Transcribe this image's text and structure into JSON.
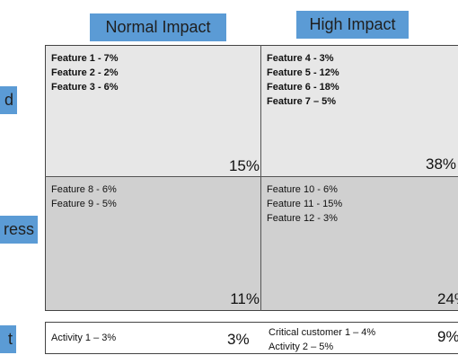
{
  "headers": {
    "normal": "Normal Impact",
    "high": "High Impact"
  },
  "rows": {
    "top": "d",
    "middle": "ress",
    "bottom": "t"
  },
  "quadrants": {
    "top_left": {
      "items": [
        "Feature 1 - 7%",
        "Feature 2 - 2%",
        "Feature 3 - 6%"
      ],
      "percent": "15%"
    },
    "top_right": {
      "items": [
        "Feature 4 - 3%",
        "Feature 5 - 12%",
        "Feature 6 - 18%",
        "Feature 7 – 5%"
      ],
      "percent": "38%"
    },
    "bottom_left": {
      "items": [
        "Feature 8 - 6%",
        "Feature 9 - 5%"
      ],
      "percent": "11%"
    },
    "bottom_right": {
      "items": [
        "Feature 10 - 6%",
        "Feature 11 - 15%",
        "Feature 12 - 3%"
      ],
      "percent": "24%"
    }
  },
  "bottom_row": {
    "left": {
      "items": [
        "Activity 1 – 3%"
      ],
      "percent": "3%"
    },
    "right": {
      "items": [
        "Critical customer 1 – 4%",
        "Activity 2 – 5%"
      ],
      "percent": "9%"
    }
  },
  "colors": {
    "header_bg": "#5b9bd5",
    "cell_light": "#e7e7e7",
    "cell_dark": "#d0d0d0"
  }
}
